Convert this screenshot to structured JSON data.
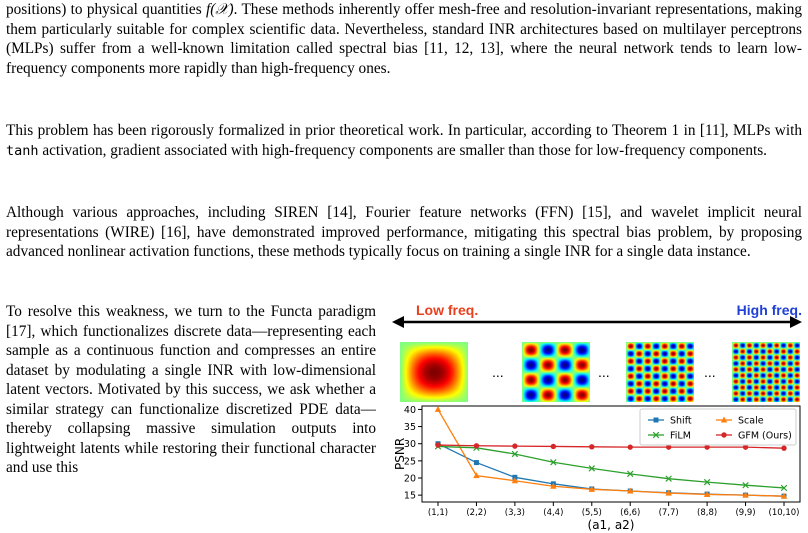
{
  "paragraphs": {
    "p1": {
      "t1": "positions) to physical quantities ",
      "math": "f(𝒳)",
      "t2": ". These methods inherently offer mesh-free and resolution-invariant representations, making them particularly suitable for complex scientific data. Nevertheless, standard INR architectures based on multilayer perceptrons (MLPs) suffer from a well-known limitation called spectral bias [11, 12, 13], where the neural network tends to learn low-frequency components more rapidly than high-frequency ones."
    },
    "p2": {
      "t1": "This problem has been rigorously formalized in prior theoretical work. In particular, according to Theorem 1 in [11], MLPs with ",
      "code": "tanh",
      "t2": " activation, gradient associated with high-frequency components are smaller than those for low-frequency components."
    },
    "p3": "Although various approaches, including SIREN [14], Fourier feature networks (FFN) [15], and wavelet implicit neural representations (WIRE) [16], have demonstrated improved performance, mitigating this spectral bias problem, by proposing advanced nonlinear activation functions, these methods typically focus on training a single INR for a single data instance.",
    "p4": "To resolve this weakness, we turn to the Functa paradigm [17], which functionalizes discrete data—representing each sample as a continuous function and compresses an entire dataset by modulating a single INR with low-dimensional latent vectors. Motivated by this success, we ask whether a similar strategy can functionalize discretized PDE data—thereby collapsing massive simulation outputs into lightweight latents while restoring their functional character and use this"
  },
  "figure": {
    "low_label": "Low freq.",
    "high_label": "High freq.",
    "ellipsis": "...",
    "thumb_frequencies": [
      1,
      4,
      8,
      10
    ]
  },
  "chart_data": {
    "type": "line",
    "categories": [
      "(1,1)",
      "(2,2)",
      "(3,3)",
      "(4,4)",
      "(5,5)",
      "(6,6)",
      "(7,7)",
      "(8,8)",
      "(9,9)",
      "(10,10)"
    ],
    "xlabel": "(a1, a2)",
    "ylabel": "PSNR",
    "ylim": [
      13,
      41
    ],
    "yticks": [
      15,
      20,
      25,
      30,
      35,
      40
    ],
    "grid": false,
    "legend": "top-right",
    "series": [
      {
        "name": "Shift",
        "color": "#1f77b4",
        "marker": "square",
        "values": [
          30,
          24.5,
          20.2,
          18.3,
          16.8,
          16.2,
          15.7,
          15.3,
          15.0,
          14.7
        ]
      },
      {
        "name": "Scale",
        "color": "#ff7f0e",
        "marker": "triangle",
        "values": [
          40,
          20.7,
          19.2,
          17.6,
          16.7,
          16.2,
          15.6,
          15.2,
          15.0,
          14.7
        ]
      },
      {
        "name": "FiLM",
        "color": "#2ca02c",
        "marker": "x",
        "values": [
          29.2,
          28.8,
          27.0,
          24.6,
          22.8,
          21.2,
          19.8,
          18.8,
          17.9,
          17.1
        ]
      },
      {
        "name": "GFM (Ours)",
        "color": "#d62728",
        "marker": "circle",
        "values": [
          29.6,
          29.4,
          29.3,
          29.2,
          29.1,
          29.0,
          29.0,
          29.0,
          29.0,
          28.7
        ]
      }
    ]
  }
}
